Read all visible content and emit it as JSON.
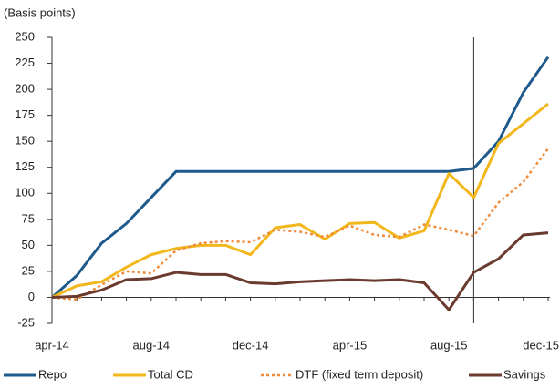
{
  "chart_data": {
    "type": "line",
    "y_label": "(Basis points)",
    "categories": [
      "apr-14",
      null,
      null,
      null,
      "aug-14",
      null,
      null,
      null,
      "dec-14",
      null,
      null,
      null,
      "apr-15",
      null,
      null,
      null,
      "aug-15",
      null,
      null,
      null,
      "dec-15"
    ],
    "ylim": [
      -25,
      250
    ],
    "yticks": [
      -25,
      0,
      25,
      50,
      75,
      100,
      125,
      150,
      175,
      200,
      225,
      250
    ],
    "vertical_line": 17,
    "grid": false,
    "legend": "bottom",
    "series": [
      {
        "name": "Repo",
        "color": "#1f5a8c",
        "style": "solid",
        "values": [
          0,
          21,
          52,
          71,
          96,
          121,
          121,
          121,
          121,
          121,
          121,
          121,
          121,
          121,
          121,
          121,
          121,
          124,
          150,
          197,
          231
        ]
      },
      {
        "name": "Total CD",
        "color": "#f2b71b",
        "style": "solid",
        "values": [
          0,
          11,
          15,
          29,
          41,
          47,
          50,
          50,
          41,
          67,
          70,
          56,
          71,
          72,
          57,
          64,
          119,
          96,
          148,
          167,
          186
        ]
      },
      {
        "name": "DTF (fixed term deposit)",
        "color": "#ef8c3c",
        "style": "dotted",
        "values": [
          0,
          -2,
          12,
          25,
          23,
          45,
          52,
          54,
          53,
          65,
          63,
          58,
          69,
          60,
          58,
          70,
          65,
          59,
          91,
          111,
          143
        ]
      },
      {
        "name": "Savings",
        "color": "#6b3a2e",
        "style": "solid",
        "values": [
          0,
          1,
          7,
          17,
          18,
          24,
          22,
          22,
          14,
          13,
          15,
          16,
          17,
          16,
          17,
          14,
          -12,
          24,
          37,
          60,
          62
        ]
      }
    ]
  }
}
